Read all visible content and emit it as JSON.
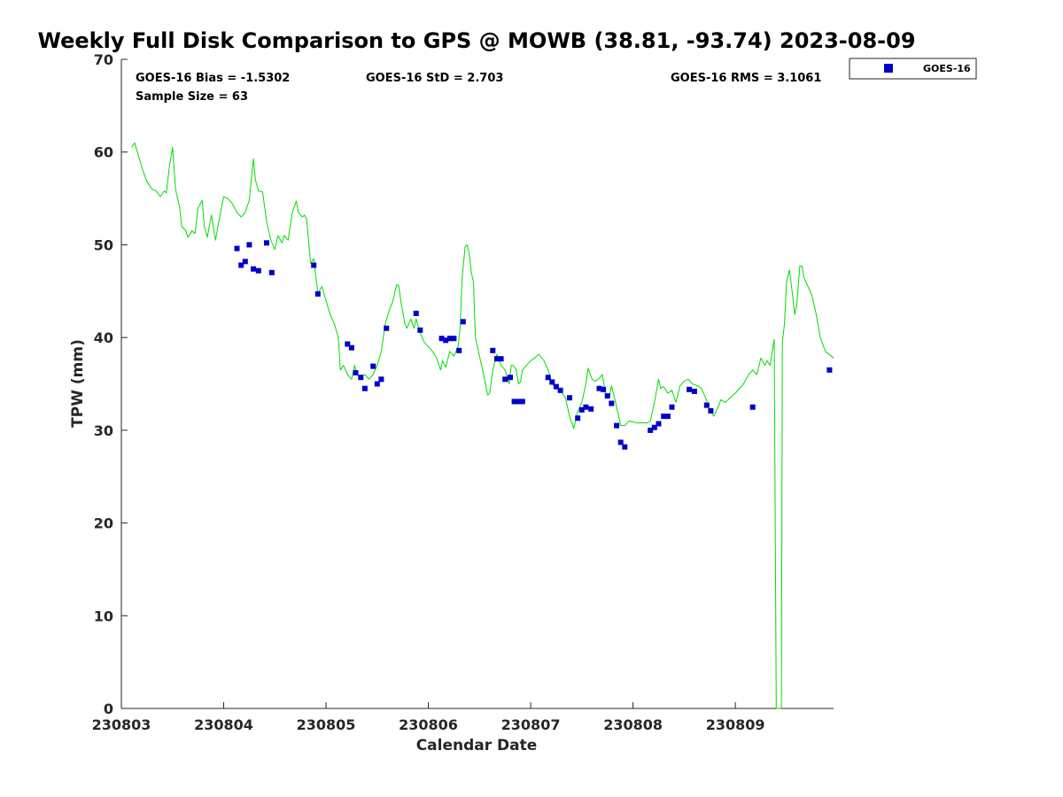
{
  "chart_data": {
    "type": "scatter",
    "title": "Weekly Full Disk Comparison to GPS @ MOWB (38.81, -93.74) 2023-08-09",
    "xlabel": "Calendar Date",
    "ylabel": "TPW (mm)",
    "xlim": [
      0,
      6.96
    ],
    "ylim": [
      0,
      70
    ],
    "x_tick_values": [
      0,
      1,
      2,
      3,
      4,
      5,
      6
    ],
    "x_tick_labels": [
      "230803",
      "230804",
      "230805",
      "230806",
      "230807",
      "230808",
      "230809"
    ],
    "y_tick_values": [
      0,
      10,
      20,
      30,
      40,
      50,
      60,
      70
    ],
    "y_tick_labels": [
      "0",
      "10",
      "20",
      "30",
      "40",
      "50",
      "60",
      "70"
    ],
    "grid": false,
    "legend_position": "top-right",
    "stats": {
      "bias": "GOES-16 Bias = -1.5302",
      "std": "GOES-16 StD = 2.703",
      "rms": "GOES-16 RMS = 3.1061",
      "sample": "Sample Size = 63"
    },
    "series": [
      {
        "name": "GOES-16",
        "kind": "scatter",
        "color": "#0000cc",
        "points": [
          [
            1.13,
            49.6
          ],
          [
            1.17,
            47.8
          ],
          [
            1.21,
            48.2
          ],
          [
            1.25,
            50.0
          ],
          [
            1.29,
            47.4
          ],
          [
            1.34,
            47.2
          ],
          [
            1.42,
            50.2
          ],
          [
            1.47,
            47.0
          ],
          [
            1.88,
            47.8
          ],
          [
            1.92,
            44.7
          ],
          [
            2.21,
            39.3
          ],
          [
            2.25,
            38.9
          ],
          [
            2.29,
            36.2
          ],
          [
            2.34,
            35.7
          ],
          [
            2.38,
            34.5
          ],
          [
            2.46,
            36.9
          ],
          [
            2.5,
            35.0
          ],
          [
            2.54,
            35.5
          ],
          [
            2.59,
            41.0
          ],
          [
            2.88,
            42.6
          ],
          [
            2.92,
            40.8
          ],
          [
            3.13,
            39.9
          ],
          [
            3.17,
            39.7
          ],
          [
            3.21,
            39.9
          ],
          [
            3.25,
            39.9
          ],
          [
            3.3,
            38.6
          ],
          [
            3.34,
            41.7
          ],
          [
            3.63,
            38.6
          ],
          [
            3.67,
            37.7
          ],
          [
            3.71,
            37.7
          ],
          [
            3.75,
            35.5
          ],
          [
            3.8,
            35.7
          ],
          [
            3.84,
            33.1
          ],
          [
            3.88,
            33.1
          ],
          [
            3.92,
            33.1
          ],
          [
            4.17,
            35.7
          ],
          [
            4.21,
            35.2
          ],
          [
            4.25,
            34.7
          ],
          [
            4.29,
            34.3
          ],
          [
            4.38,
            33.5
          ],
          [
            4.46,
            31.3
          ],
          [
            4.5,
            32.2
          ],
          [
            4.54,
            32.5
          ],
          [
            4.59,
            32.3
          ],
          [
            4.67,
            34.5
          ],
          [
            4.71,
            34.4
          ],
          [
            4.75,
            33.7
          ],
          [
            4.79,
            32.9
          ],
          [
            4.84,
            30.5
          ],
          [
            4.88,
            28.7
          ],
          [
            4.92,
            28.2
          ],
          [
            5.17,
            30.0
          ],
          [
            5.21,
            30.3
          ],
          [
            5.25,
            30.7
          ],
          [
            5.3,
            31.5
          ],
          [
            5.34,
            31.5
          ],
          [
            5.38,
            32.5
          ],
          [
            5.55,
            34.4
          ],
          [
            5.6,
            34.2
          ],
          [
            5.72,
            32.7
          ],
          [
            5.76,
            32.1
          ],
          [
            6.17,
            32.5
          ],
          [
            6.92,
            36.5
          ]
        ]
      },
      {
        "name": "",
        "kind": "line",
        "color": "#00dd00",
        "points": [
          [
            0.1,
            60.5
          ],
          [
            0.13,
            61.0
          ],
          [
            0.17,
            59.5
          ],
          [
            0.21,
            58.0
          ],
          [
            0.25,
            56.8
          ],
          [
            0.3,
            56.0
          ],
          [
            0.34,
            55.8
          ],
          [
            0.38,
            55.2
          ],
          [
            0.42,
            55.8
          ],
          [
            0.44,
            55.6
          ],
          [
            0.47,
            58.5
          ],
          [
            0.5,
            60.5
          ],
          [
            0.53,
            56.0
          ],
          [
            0.57,
            54.0
          ],
          [
            0.59,
            52.0
          ],
          [
            0.63,
            51.5
          ],
          [
            0.65,
            50.8
          ],
          [
            0.69,
            51.5
          ],
          [
            0.72,
            51.2
          ],
          [
            0.75,
            54.0
          ],
          [
            0.79,
            54.8
          ],
          [
            0.81,
            52.0
          ],
          [
            0.84,
            50.8
          ],
          [
            0.88,
            53.2
          ],
          [
            0.92,
            50.5
          ],
          [
            0.96,
            53.0
          ],
          [
            1.0,
            55.2
          ],
          [
            1.04,
            55.0
          ],
          [
            1.08,
            54.5
          ],
          [
            1.13,
            53.5
          ],
          [
            1.17,
            53.0
          ],
          [
            1.21,
            53.5
          ],
          [
            1.25,
            54.8
          ],
          [
            1.29,
            59.3
          ],
          [
            1.31,
            57.0
          ],
          [
            1.34,
            55.8
          ],
          [
            1.38,
            55.7
          ],
          [
            1.42,
            52.5
          ],
          [
            1.46,
            50.5
          ],
          [
            1.5,
            49.5
          ],
          [
            1.53,
            51.0
          ],
          [
            1.57,
            50.2
          ],
          [
            1.59,
            51.0
          ],
          [
            1.63,
            50.5
          ],
          [
            1.67,
            53.5
          ],
          [
            1.71,
            54.7
          ],
          [
            1.73,
            53.5
          ],
          [
            1.77,
            53.0
          ],
          [
            1.79,
            53.2
          ],
          [
            1.81,
            52.8
          ],
          [
            1.85,
            48.0
          ],
          [
            1.88,
            48.5
          ],
          [
            1.92,
            44.8
          ],
          [
            1.96,
            45.5
          ],
          [
            2.0,
            44.0
          ],
          [
            2.04,
            42.5
          ],
          [
            2.08,
            41.5
          ],
          [
            2.12,
            40.0
          ],
          [
            2.14,
            36.5
          ],
          [
            2.17,
            37.0
          ],
          [
            2.21,
            36.0
          ],
          [
            2.25,
            35.5
          ],
          [
            2.28,
            37.0
          ],
          [
            2.3,
            36.0
          ],
          [
            2.34,
            35.8
          ],
          [
            2.38,
            36.0
          ],
          [
            2.42,
            35.5
          ],
          [
            2.46,
            36.0
          ],
          [
            2.5,
            37.0
          ],
          [
            2.54,
            38.5
          ],
          [
            2.58,
            41.5
          ],
          [
            2.62,
            43.0
          ],
          [
            2.65,
            43.8
          ],
          [
            2.69,
            45.7
          ],
          [
            2.71,
            45.6
          ],
          [
            2.73,
            44.0
          ],
          [
            2.77,
            41.5
          ],
          [
            2.79,
            41.0
          ],
          [
            2.83,
            42.0
          ],
          [
            2.86,
            41.0
          ],
          [
            2.88,
            42.0
          ],
          [
            2.92,
            40.5
          ],
          [
            2.96,
            39.5
          ],
          [
            3.0,
            39.0
          ],
          [
            3.04,
            38.5
          ],
          [
            3.08,
            37.8
          ],
          [
            3.12,
            36.5
          ],
          [
            3.14,
            37.5
          ],
          [
            3.17,
            36.8
          ],
          [
            3.21,
            38.5
          ],
          [
            3.25,
            38.0
          ],
          [
            3.29,
            39.0
          ],
          [
            3.31,
            41.0
          ],
          [
            3.33,
            46.5
          ],
          [
            3.36,
            49.8
          ],
          [
            3.38,
            50.0
          ],
          [
            3.4,
            49.0
          ],
          [
            3.42,
            47.0
          ],
          [
            3.44,
            46.0
          ],
          [
            3.46,
            40.0
          ],
          [
            3.5,
            38.0
          ],
          [
            3.54,
            36.0
          ],
          [
            3.58,
            33.8
          ],
          [
            3.6,
            34.0
          ],
          [
            3.63,
            36.5
          ],
          [
            3.67,
            38.2
          ],
          [
            3.71,
            37.0
          ],
          [
            3.75,
            36.5
          ],
          [
            3.79,
            35.0
          ],
          [
            3.81,
            37.0
          ],
          [
            3.83,
            37.0
          ],
          [
            3.86,
            36.5
          ],
          [
            3.88,
            35.0
          ],
          [
            3.9,
            35.2
          ],
          [
            3.92,
            36.5
          ],
          [
            3.96,
            37.0
          ],
          [
            4.0,
            37.5
          ],
          [
            4.04,
            37.8
          ],
          [
            4.08,
            38.2
          ],
          [
            4.13,
            37.5
          ],
          [
            4.17,
            36.5
          ],
          [
            4.21,
            35.0
          ],
          [
            4.25,
            34.5
          ],
          [
            4.29,
            34.3
          ],
          [
            4.34,
            33.5
          ],
          [
            4.38,
            31.5
          ],
          [
            4.42,
            30.2
          ],
          [
            4.46,
            32.0
          ],
          [
            4.5,
            33.0
          ],
          [
            4.54,
            35.0
          ],
          [
            4.56,
            36.7
          ],
          [
            4.6,
            35.5
          ],
          [
            4.63,
            35.3
          ],
          [
            4.67,
            35.6
          ],
          [
            4.7,
            36.0
          ],
          [
            4.73,
            34.0
          ],
          [
            4.77,
            33.5
          ],
          [
            4.79,
            34.8
          ],
          [
            4.83,
            33.0
          ],
          [
            4.88,
            30.5
          ],
          [
            4.92,
            30.5
          ],
          [
            4.96,
            31.0
          ],
          [
            5.04,
            30.8
          ],
          [
            5.1,
            30.8
          ],
          [
            5.14,
            30.8
          ],
          [
            5.17,
            31.0
          ],
          [
            5.21,
            33.0
          ],
          [
            5.25,
            35.5
          ],
          [
            5.27,
            34.5
          ],
          [
            5.3,
            34.7
          ],
          [
            5.34,
            34.0
          ],
          [
            5.38,
            34.3
          ],
          [
            5.42,
            33.0
          ],
          [
            5.46,
            34.8
          ],
          [
            5.5,
            35.3
          ],
          [
            5.54,
            35.5
          ],
          [
            5.58,
            35.0
          ],
          [
            5.63,
            34.8
          ],
          [
            5.67,
            34.5
          ],
          [
            5.71,
            33.5
          ],
          [
            5.75,
            32.2
          ],
          [
            5.79,
            31.5
          ],
          [
            5.83,
            32.5
          ],
          [
            5.86,
            33.3
          ],
          [
            5.9,
            33.0
          ],
          [
            6.0,
            34.0
          ],
          [
            6.08,
            35.0
          ],
          [
            6.13,
            36.0
          ],
          [
            6.17,
            36.5
          ],
          [
            6.21,
            36.0
          ],
          [
            6.25,
            37.8
          ],
          [
            6.29,
            37.0
          ],
          [
            6.31,
            37.5
          ],
          [
            6.34,
            37.0
          ],
          [
            6.36,
            38.5
          ],
          [
            6.38,
            39.8
          ],
          [
            6.4,
            0
          ],
          [
            6.45,
            0
          ],
          [
            6.46,
            39.5
          ],
          [
            6.48,
            41.5
          ],
          [
            6.5,
            46.0
          ],
          [
            6.53,
            47.3
          ],
          [
            6.56,
            44.5
          ],
          [
            6.58,
            42.5
          ],
          [
            6.6,
            43.5
          ],
          [
            6.63,
            47.7
          ],
          [
            6.65,
            47.7
          ],
          [
            6.67,
            46.5
          ],
          [
            6.71,
            45.5
          ],
          [
            6.75,
            44.5
          ],
          [
            6.79,
            42.5
          ],
          [
            6.83,
            40.0
          ],
          [
            6.88,
            38.5
          ],
          [
            6.96,
            37.8
          ]
        ]
      }
    ]
  }
}
